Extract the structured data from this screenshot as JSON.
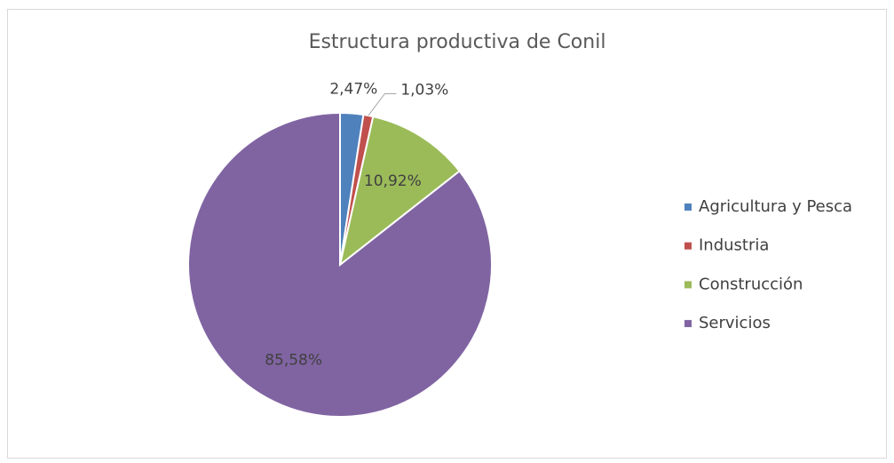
{
  "chart_data": {
    "type": "pie",
    "title": "Estructura productiva de Conil",
    "categories": [
      "Agricultura y Pesca",
      "Industria",
      "Construcción",
      "Servicios"
    ],
    "values": [
      2.47,
      1.03,
      10.92,
      85.58
    ],
    "value_labels": [
      "2,47%",
      "1,03%",
      "10,92%",
      "85,58%"
    ],
    "colors": [
      "#4f81bd",
      "#c0504d",
      "#9bbb59",
      "#8064a2"
    ],
    "legend": "right"
  }
}
